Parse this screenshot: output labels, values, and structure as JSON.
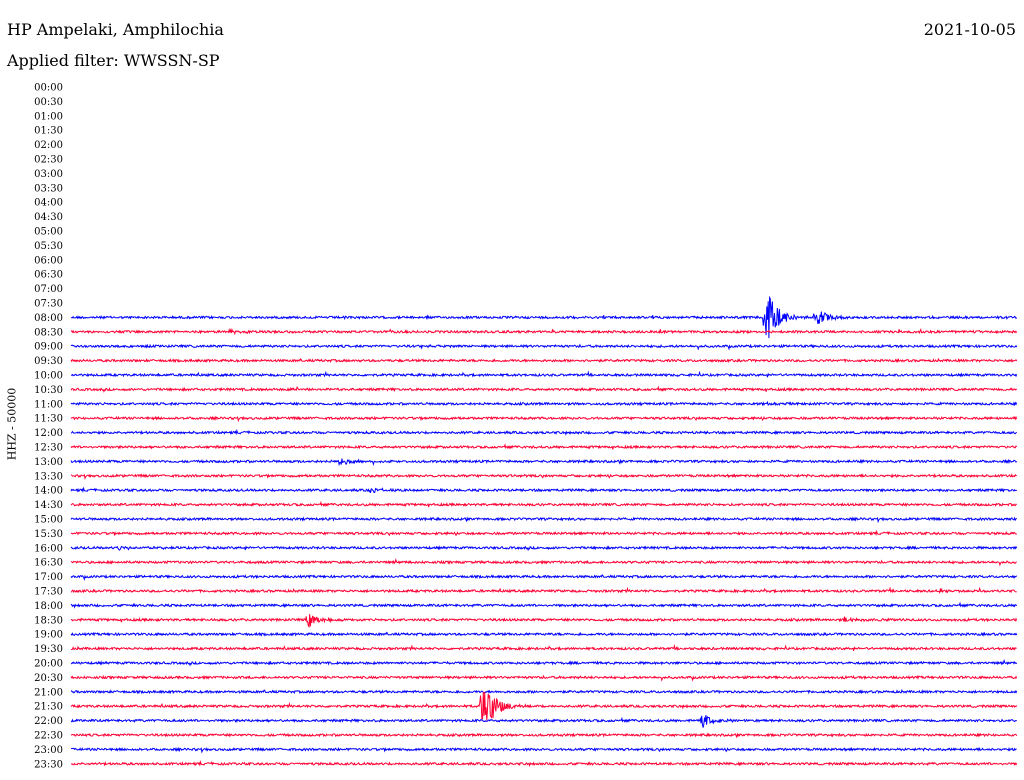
{
  "header": {
    "station": "HP Ampelaki, Amphilochia",
    "date": "2021-10-05",
    "filter": "Applied filter: WWSSN-SP"
  },
  "chart_data": {
    "type": "line",
    "title": "HP Ampelaki, Amphilochia",
    "subtitle": "Applied filter: WWSSN-SP",
    "date": "2021-10-05",
    "ylabel": "HHZ - 50000",
    "xlabel": "",
    "x_unit": "minutes",
    "xlim": [
      0,
      30
    ],
    "row_interval_minutes": 30,
    "row_labels": [
      "00:00",
      "00:30",
      "01:00",
      "01:30",
      "02:00",
      "02:30",
      "03:00",
      "03:30",
      "04:00",
      "04:30",
      "05:00",
      "05:30",
      "06:00",
      "06:30",
      "07:00",
      "07:30",
      "08:00",
      "08:30",
      "09:00",
      "09:30",
      "10:00",
      "10:30",
      "11:00",
      "11:30",
      "12:00",
      "12:30",
      "13:00",
      "13:30",
      "14:00",
      "14:30",
      "15:00",
      "15:30",
      "16:00",
      "16:30",
      "17:00",
      "17:30",
      "18:00",
      "18:30",
      "19:00",
      "19:30",
      "20:00",
      "20:30",
      "21:00",
      "21:30",
      "22:00",
      "22:30",
      "23:00",
      "23:30"
    ],
    "first_trace_row": "08:00",
    "colors": [
      "#0000ff",
      "#ff0033"
    ],
    "color_order_first_trace": "#0000ff",
    "events": [
      {
        "row": "08:00",
        "minute": 22.0,
        "amplitude": 8.0
      },
      {
        "row": "08:00",
        "minute": 23.6,
        "amplitude": 2.2
      },
      {
        "row": "08:30",
        "minute": 5.0,
        "amplitude": 0.5
      },
      {
        "row": "09:00",
        "minute": 11.0,
        "amplitude": 0.3
      },
      {
        "row": "10:30",
        "minute": 7.0,
        "amplitude": 0.5
      },
      {
        "row": "11:00",
        "minute": 22.0,
        "amplitude": 0.3
      },
      {
        "row": "13:00",
        "minute": 8.5,
        "amplitude": 0.8
      },
      {
        "row": "14:00",
        "minute": 9.5,
        "amplitude": 0.5
      },
      {
        "row": "16:00",
        "minute": 1.5,
        "amplitude": 0.5
      },
      {
        "row": "17:30",
        "minute": 27.5,
        "amplitude": 0.4
      },
      {
        "row": "18:30",
        "minute": 7.5,
        "amplitude": 1.6
      },
      {
        "row": "18:30",
        "minute": 24.5,
        "amplitude": 0.6
      },
      {
        "row": "21:30",
        "minute": 13.0,
        "amplitude": 8.0
      },
      {
        "row": "22:00",
        "minute": 20.0,
        "amplitude": 1.6
      }
    ],
    "grid": false,
    "legend": "none"
  }
}
